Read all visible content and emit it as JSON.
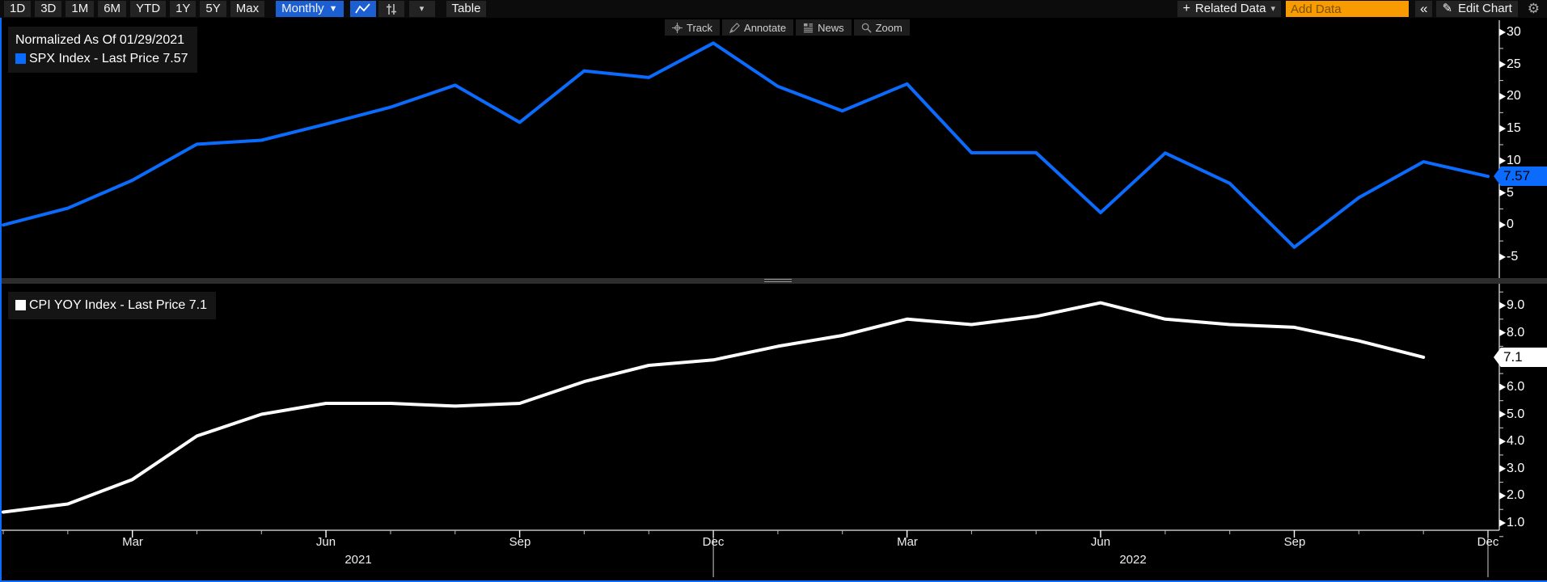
{
  "toolbar": {
    "range_buttons": [
      "1D",
      "3D",
      "1M",
      "6M",
      "YTD",
      "1Y",
      "5Y",
      "Max"
    ],
    "period_button": "Monthly",
    "table_button": "Table",
    "related_data_button": "Related Data",
    "add_data_placeholder": "Add Data",
    "edit_chart_button": "Edit Chart",
    "icons": {
      "period_caret": "▼",
      "related_caret": "▾",
      "plus": "+",
      "collapse": "«",
      "pencil": "✎",
      "gear": "⚙",
      "panel_caret": "▾"
    }
  },
  "overlay_buttons": {
    "track": "Track",
    "annotate": "Annotate",
    "news": "News",
    "zoom": "Zoom"
  },
  "top_panel": {
    "note": "Normalized As Of 01/29/2021",
    "legend": "SPX Index - Last Price 7.57",
    "badge": "7.57",
    "line_color": "#0b6bfc"
  },
  "bottom_panel": {
    "legend": "CPI YOY Index - Last Price 7.1",
    "badge": "7.1",
    "line_color": "#ffffff"
  },
  "chart_data": [
    {
      "type": "line",
      "panel": "top",
      "title": "Normalized As Of 01/29/2021",
      "series": [
        {
          "name": "SPX Index - Last Price 7.57",
          "values": [
            0.0,
            2.61,
            6.96,
            12.57,
            13.19,
            15.7,
            18.34,
            21.77,
            15.97,
            23.99,
            22.96,
            28.32,
            21.58,
            17.76,
            21.97,
            11.24,
            11.25,
            1.92,
            11.2,
            6.48,
            -3.46,
            4.25,
            9.85,
            7.57
          ]
        }
      ],
      "x": [
        "2021-01",
        "2021-02",
        "2021-03",
        "2021-04",
        "2021-05",
        "2021-06",
        "2021-07",
        "2021-08",
        "2021-09",
        "2021-10",
        "2021-11",
        "2021-12",
        "2022-01",
        "2022-02",
        "2022-03",
        "2022-04",
        "2022-05",
        "2022-06",
        "2022-07",
        "2022-08",
        "2022-09",
        "2022-10",
        "2022-11",
        "2022-12"
      ],
      "y_tick_labels": [
        "30",
        "25",
        "20",
        "15",
        "10",
        "5",
        "0",
        "-5"
      ],
      "y_ticks": [
        30,
        25,
        20,
        15,
        10,
        5,
        0,
        -5
      ],
      "ylim": [
        -7.2,
        32.1
      ],
      "last_value_badge": "7.57",
      "grid": "off",
      "legend_position": "top-left"
    },
    {
      "type": "line",
      "panel": "bottom",
      "series": [
        {
          "name": "CPI YOY Index - Last Price 7.1",
          "values": [
            1.4,
            1.7,
            2.6,
            4.2,
            5.0,
            5.4,
            5.4,
            5.3,
            5.4,
            6.2,
            6.8,
            7.0,
            7.5,
            7.9,
            8.5,
            8.3,
            8.6,
            9.1,
            8.5,
            8.3,
            8.2,
            7.7,
            7.1
          ]
        }
      ],
      "x": [
        "2021-01",
        "2021-02",
        "2021-03",
        "2021-04",
        "2021-05",
        "2021-06",
        "2021-07",
        "2021-08",
        "2021-09",
        "2021-10",
        "2021-11",
        "2021-12",
        "2022-01",
        "2022-02",
        "2022-03",
        "2022-04",
        "2022-05",
        "2022-06",
        "2022-07",
        "2022-08",
        "2022-09",
        "2022-10",
        "2022-11"
      ],
      "y_tick_labels": [
        "9.0",
        "8.0",
        "7.0",
        "6.0",
        "5.0",
        "4.0",
        "3.0",
        "2.0",
        "1.0"
      ],
      "y_ticks": [
        9,
        8,
        7,
        6,
        5,
        4,
        3,
        2,
        1
      ],
      "ylim": [
        0.35,
        9.65
      ],
      "last_value_badge": "7.1",
      "grid": "off",
      "legend_position": "top-left"
    }
  ],
  "x_axis": {
    "month_ticks": [
      {
        "label": "Mar",
        "index": 2
      },
      {
        "label": "Jun",
        "index": 5
      },
      {
        "label": "Sep",
        "index": 8
      },
      {
        "label": "Dec",
        "index": 11
      },
      {
        "label": "Mar",
        "index": 14
      },
      {
        "label": "Jun",
        "index": 17
      },
      {
        "label": "Sep",
        "index": 20
      },
      {
        "label": "Dec",
        "index": 23
      }
    ],
    "year_labels": [
      {
        "label": "2021",
        "start": 0,
        "end": 11
      },
      {
        "label": "2022",
        "start": 12,
        "end": 23
      }
    ]
  }
}
